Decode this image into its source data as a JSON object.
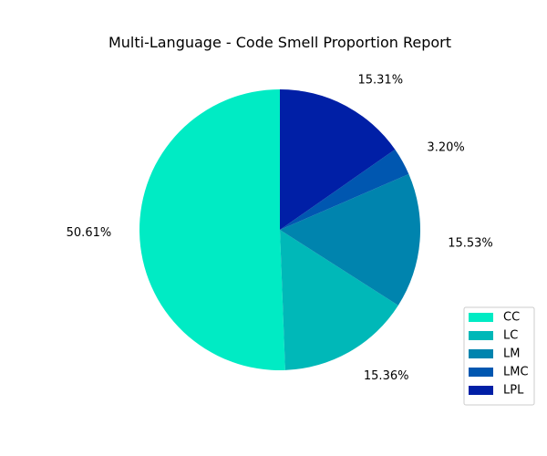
{
  "chart_data": {
    "type": "pie",
    "title": "Multi-Language - Code Smell Proportion Report",
    "categories": [
      "CC",
      "LC",
      "LM",
      "LMC",
      "LPL"
    ],
    "values": [
      50.61,
      15.36,
      15.53,
      3.2,
      15.31
    ],
    "labels": [
      "50.61%",
      "15.36%",
      "15.53%",
      "3.20%",
      "15.31%"
    ],
    "colors": [
      "#00EBC4",
      "#00B8B8",
      "#0084AE",
      "#0057B0",
      "#001FA6"
    ],
    "start_angle_deg": 90,
    "direction": "counterclockwise",
    "legend": {
      "placement": "lower-right",
      "entries": [
        "CC",
        "LC",
        "LM",
        "LMC",
        "LPL"
      ]
    }
  }
}
